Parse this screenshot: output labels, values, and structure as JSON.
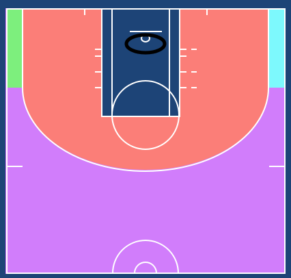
{
  "court": {
    "colors": {
      "border": "#1d4477",
      "lines": "#ffffff",
      "paint": "#1d4477",
      "zone_inside_arc": "#fb7e78",
      "zone_outside_arc": "#d17dfb",
      "zone_left_corner": "#7def7d",
      "zone_right_corner": "#7df9fd",
      "hoop_marker": "#000000"
    },
    "zones": [
      {
        "id": "inside-arc",
        "label": ""
      },
      {
        "id": "outside-arc",
        "label": ""
      },
      {
        "id": "left-corner",
        "label": ""
      },
      {
        "id": "right-corner",
        "label": ""
      }
    ],
    "marker": {
      "shape": "ellipse",
      "description_icon": "hoop-marker-icon"
    }
  }
}
